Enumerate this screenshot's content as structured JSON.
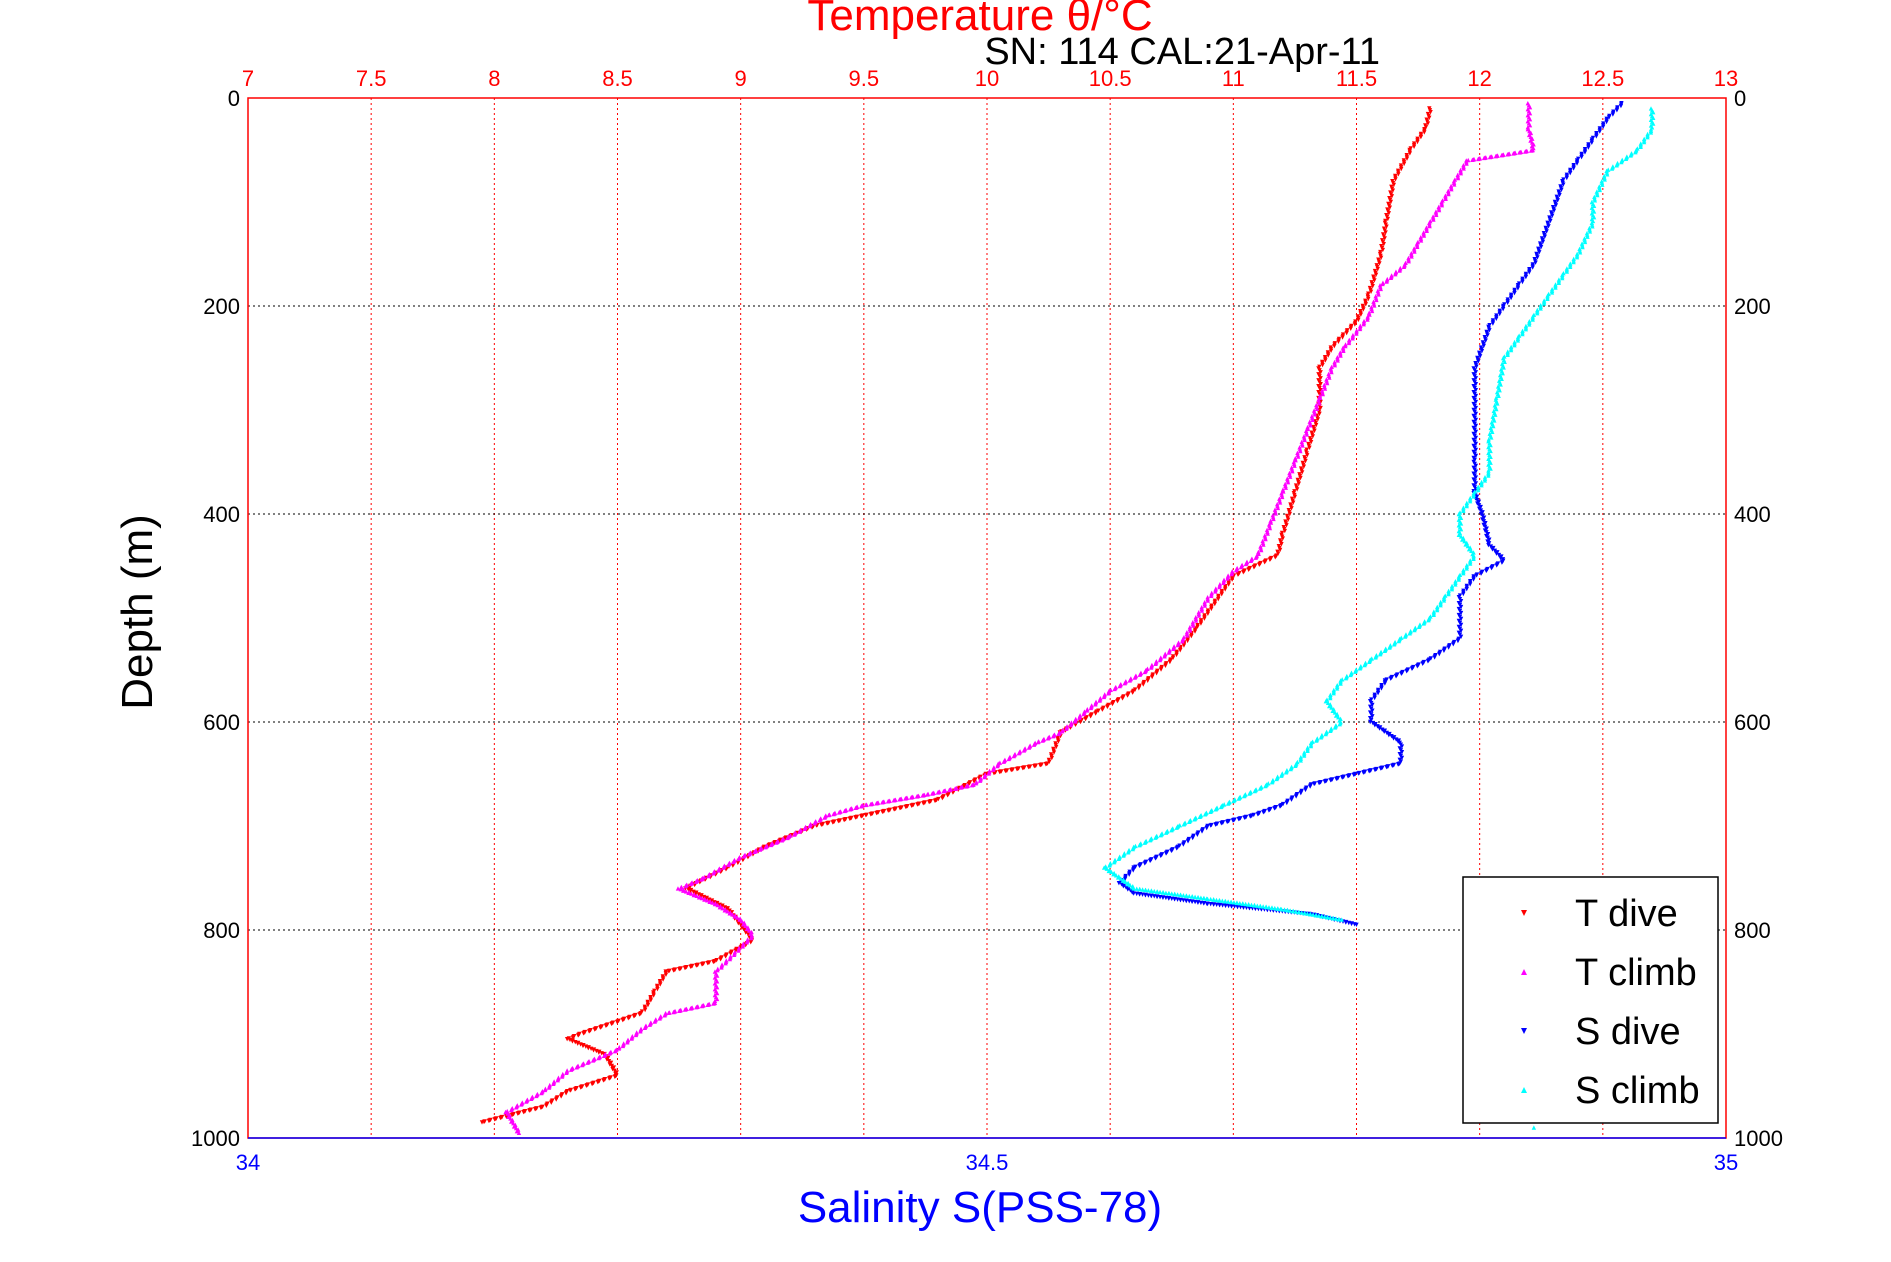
{
  "chart_data": {
    "type": "scatter",
    "title": "Temperature θ/°C",
    "subtitle": "SN: 114  CAL:21-Apr-11",
    "xlabel_top": "Temperature θ/°C",
    "xlabel_bottom": "Salinity S(PSS-78)",
    "ylabel": "Depth (m)",
    "colors": {
      "temperature_axis": "#ff0000",
      "salinity_axis": "#0000ff",
      "text": "#000000"
    },
    "temperature_axis": {
      "range": [
        7,
        13
      ],
      "ticks": [
        7,
        7.5,
        8,
        8.5,
        9,
        9.5,
        10,
        10.5,
        11,
        11.5,
        12,
        12.5,
        13
      ],
      "tick_labels": [
        "7",
        "7.5",
        "8",
        "8.5",
        "9",
        "9.5",
        "10",
        "10.5",
        "11",
        "11.5",
        "12",
        "12.5",
        "13"
      ]
    },
    "salinity_axis": {
      "range": [
        34,
        35
      ],
      "ticks": [
        34,
        34.5,
        35
      ],
      "tick_labels": [
        "34",
        "34.5",
        "35"
      ]
    },
    "depth_axis": {
      "range": [
        0,
        1000
      ],
      "reversed": true,
      "ticks": [
        0,
        200,
        400,
        600,
        800,
        1000
      ],
      "tick_labels": [
        "0",
        "200",
        "400",
        "600",
        "800",
        "1000"
      ]
    },
    "grid": true,
    "legend_position": "bottom-right",
    "series": [
      {
        "name": "T dive",
        "axis": "temperature",
        "color": "#ff0000",
        "marker": "triangle-down",
        "points": [
          [
            11.8,
            10
          ],
          [
            11.78,
            30
          ],
          [
            11.72,
            50
          ],
          [
            11.65,
            80
          ],
          [
            11.62,
            120
          ],
          [
            11.6,
            150
          ],
          [
            11.55,
            190
          ],
          [
            11.5,
            215
          ],
          [
            11.4,
            240
          ],
          [
            11.35,
            260
          ],
          [
            11.35,
            300
          ],
          [
            11.3,
            340
          ],
          [
            11.25,
            380
          ],
          [
            11.2,
            420
          ],
          [
            11.18,
            440
          ],
          [
            11.0,
            460
          ],
          [
            10.85,
            510
          ],
          [
            10.75,
            540
          ],
          [
            10.6,
            570
          ],
          [
            10.45,
            590
          ],
          [
            10.3,
            610
          ],
          [
            10.25,
            640
          ],
          [
            10.0,
            650
          ],
          [
            9.8,
            675
          ],
          [
            9.5,
            690
          ],
          [
            9.3,
            700
          ],
          [
            9.1,
            720
          ],
          [
            8.95,
            740
          ],
          [
            8.78,
            760
          ],
          [
            8.95,
            780
          ],
          [
            9.05,
            810
          ],
          [
            8.9,
            830
          ],
          [
            8.7,
            840
          ],
          [
            8.65,
            860
          ],
          [
            8.6,
            880
          ],
          [
            8.35,
            900
          ],
          [
            8.3,
            905
          ],
          [
            8.45,
            920
          ],
          [
            8.5,
            940
          ],
          [
            8.3,
            955
          ],
          [
            8.2,
            970
          ],
          [
            7.95,
            985
          ]
        ]
      },
      {
        "name": "T climb",
        "axis": "temperature",
        "color": "#ff00ff",
        "marker": "triangle-up",
        "points": [
          [
            12.2,
            5
          ],
          [
            12.2,
            30
          ],
          [
            12.22,
            50
          ],
          [
            11.95,
            60
          ],
          [
            11.9,
            80
          ],
          [
            11.85,
            100
          ],
          [
            11.8,
            120
          ],
          [
            11.75,
            140
          ],
          [
            11.7,
            160
          ],
          [
            11.6,
            180
          ],
          [
            11.55,
            210
          ],
          [
            11.45,
            240
          ],
          [
            11.4,
            260
          ],
          [
            11.35,
            290
          ],
          [
            11.3,
            320
          ],
          [
            11.25,
            350
          ],
          [
            11.2,
            380
          ],
          [
            11.15,
            410
          ],
          [
            11.1,
            440
          ],
          [
            11.0,
            455
          ],
          [
            10.9,
            480
          ],
          [
            10.8,
            520
          ],
          [
            10.65,
            550
          ],
          [
            10.5,
            570
          ],
          [
            10.4,
            590
          ],
          [
            10.3,
            610
          ],
          [
            10.2,
            620
          ],
          [
            10.05,
            640
          ],
          [
            9.95,
            660
          ],
          [
            9.75,
            670
          ],
          [
            9.5,
            680
          ],
          [
            9.35,
            690
          ],
          [
            9.2,
            710
          ],
          [
            9.0,
            730
          ],
          [
            8.85,
            750
          ],
          [
            8.75,
            760
          ],
          [
            8.9,
            775
          ],
          [
            9.0,
            790
          ],
          [
            9.05,
            805
          ],
          [
            8.9,
            840
          ],
          [
            8.9,
            870
          ],
          [
            8.7,
            880
          ],
          [
            8.6,
            895
          ],
          [
            8.5,
            915
          ],
          [
            8.3,
            935
          ],
          [
            8.2,
            955
          ],
          [
            8.05,
            975
          ],
          [
            8.1,
            995
          ]
        ]
      },
      {
        "name": "S dive",
        "axis": "salinity",
        "color": "#0000ff",
        "marker": "triangle-down",
        "points": [
          [
            34.93,
            5
          ],
          [
            34.92,
            20
          ],
          [
            34.91,
            40
          ],
          [
            34.9,
            60
          ],
          [
            34.89,
            80
          ],
          [
            34.885,
            100
          ],
          [
            34.88,
            120
          ],
          [
            34.875,
            140
          ],
          [
            34.87,
            160
          ],
          [
            34.86,
            180
          ],
          [
            34.85,
            200
          ],
          [
            34.84,
            220
          ],
          [
            34.835,
            240
          ],
          [
            34.83,
            260
          ],
          [
            34.83,
            300
          ],
          [
            34.83,
            350
          ],
          [
            34.83,
            380
          ],
          [
            34.835,
            400
          ],
          [
            34.84,
            430
          ],
          [
            34.85,
            445
          ],
          [
            34.83,
            460
          ],
          [
            34.82,
            480
          ],
          [
            34.82,
            520
          ],
          [
            34.8,
            540
          ],
          [
            34.77,
            560
          ],
          [
            34.76,
            580
          ],
          [
            34.76,
            600
          ],
          [
            34.78,
            620
          ],
          [
            34.78,
            640
          ],
          [
            34.75,
            650
          ],
          [
            34.72,
            660
          ],
          [
            34.7,
            680
          ],
          [
            34.68,
            690
          ],
          [
            34.65,
            700
          ],
          [
            34.63,
            720
          ],
          [
            34.6,
            740
          ],
          [
            34.59,
            755
          ],
          [
            34.6,
            765
          ],
          [
            34.65,
            775
          ],
          [
            34.72,
            785
          ],
          [
            34.75,
            795
          ]
        ]
      },
      {
        "name": "S climb",
        "axis": "salinity",
        "color": "#00ffff",
        "marker": "triangle-up",
        "points": [
          [
            34.95,
            10
          ],
          [
            34.95,
            30
          ],
          [
            34.94,
            50
          ],
          [
            34.92,
            70
          ],
          [
            34.91,
            100
          ],
          [
            34.91,
            120
          ],
          [
            34.9,
            150
          ],
          [
            34.89,
            170
          ],
          [
            34.88,
            190
          ],
          [
            34.87,
            210
          ],
          [
            34.86,
            230
          ],
          [
            34.85,
            250
          ],
          [
            34.845,
            290
          ],
          [
            34.84,
            330
          ],
          [
            34.84,
            360
          ],
          [
            34.83,
            380
          ],
          [
            34.82,
            400
          ],
          [
            34.82,
            420
          ],
          [
            34.83,
            440
          ],
          [
            34.82,
            460
          ],
          [
            34.81,
            480
          ],
          [
            34.8,
            500
          ],
          [
            34.78,
            520
          ],
          [
            34.76,
            540
          ],
          [
            34.74,
            560
          ],
          [
            34.73,
            580
          ],
          [
            34.74,
            600
          ],
          [
            34.72,
            620
          ],
          [
            34.71,
            640
          ],
          [
            34.69,
            660
          ],
          [
            34.66,
            680
          ],
          [
            34.63,
            700
          ],
          [
            34.6,
            720
          ],
          [
            34.58,
            740
          ],
          [
            34.6,
            760
          ],
          [
            34.65,
            770
          ],
          [
            34.7,
            780
          ],
          [
            34.74,
            790
          ],
          [
            34.87,
            990
          ]
        ]
      }
    ]
  }
}
